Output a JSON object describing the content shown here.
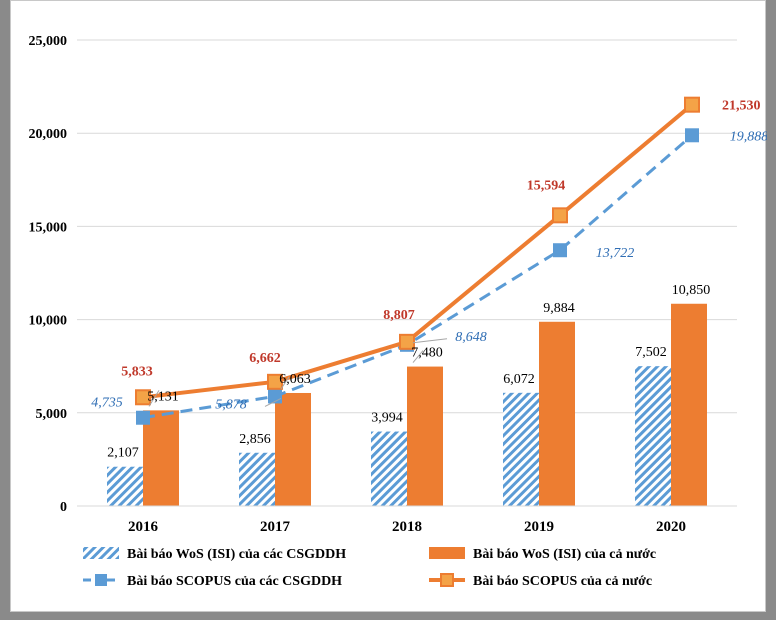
{
  "chart_data": {
    "type": "bar",
    "title": "",
    "xlabel": "",
    "ylabel": "",
    "ylim": [
      0,
      25000
    ],
    "yticks": [
      0,
      5000,
      10000,
      15000,
      20000,
      25000
    ],
    "ytick_labels": [
      "0",
      "5,000",
      "10,000",
      "15,000",
      "20,000",
      "25,000"
    ],
    "grid": true,
    "legend_position": "bottom",
    "categories": [
      "2016",
      "2017",
      "2018",
      "2019",
      "2020"
    ],
    "series": [
      {
        "name": "Bài báo WoS (ISI) của các CSGDDH",
        "kind": "bar",
        "pattern": "diagonal-hatch",
        "color": "#5b9bd5",
        "values": [
          2107,
          2856,
          3994,
          6072,
          7502
        ],
        "labels": [
          "2,107",
          "2,856",
          "3,994",
          "6,072",
          "7,502"
        ]
      },
      {
        "name": "Bài báo WoS (ISI) của cả nước",
        "kind": "bar",
        "color": "#ed7d31",
        "values": [
          5131,
          6063,
          7480,
          9884,
          10850
        ],
        "labels": [
          "5,131",
          "6,063",
          "7,480",
          "9,884",
          "10,850"
        ]
      },
      {
        "name": "Bài báo SCOPUS của các CSGDDH",
        "kind": "line",
        "line_style": "dashed",
        "marker": "square",
        "color": "#5b9bd5",
        "values": [
          4735,
          5878,
          8648,
          13722,
          19888
        ],
        "labels": [
          "4,735",
          "5,878",
          "8,648",
          "13,722",
          "19,888"
        ]
      },
      {
        "name": "Bài báo SCOPUS của cả nước",
        "kind": "line",
        "line_style": "solid",
        "marker": "square",
        "color": "#ed7d31",
        "values": [
          5833,
          6662,
          8807,
          15594,
          21530
        ],
        "labels": [
          "5,833",
          "6,662",
          "8,807",
          "15,594",
          "21,530"
        ]
      }
    ]
  }
}
